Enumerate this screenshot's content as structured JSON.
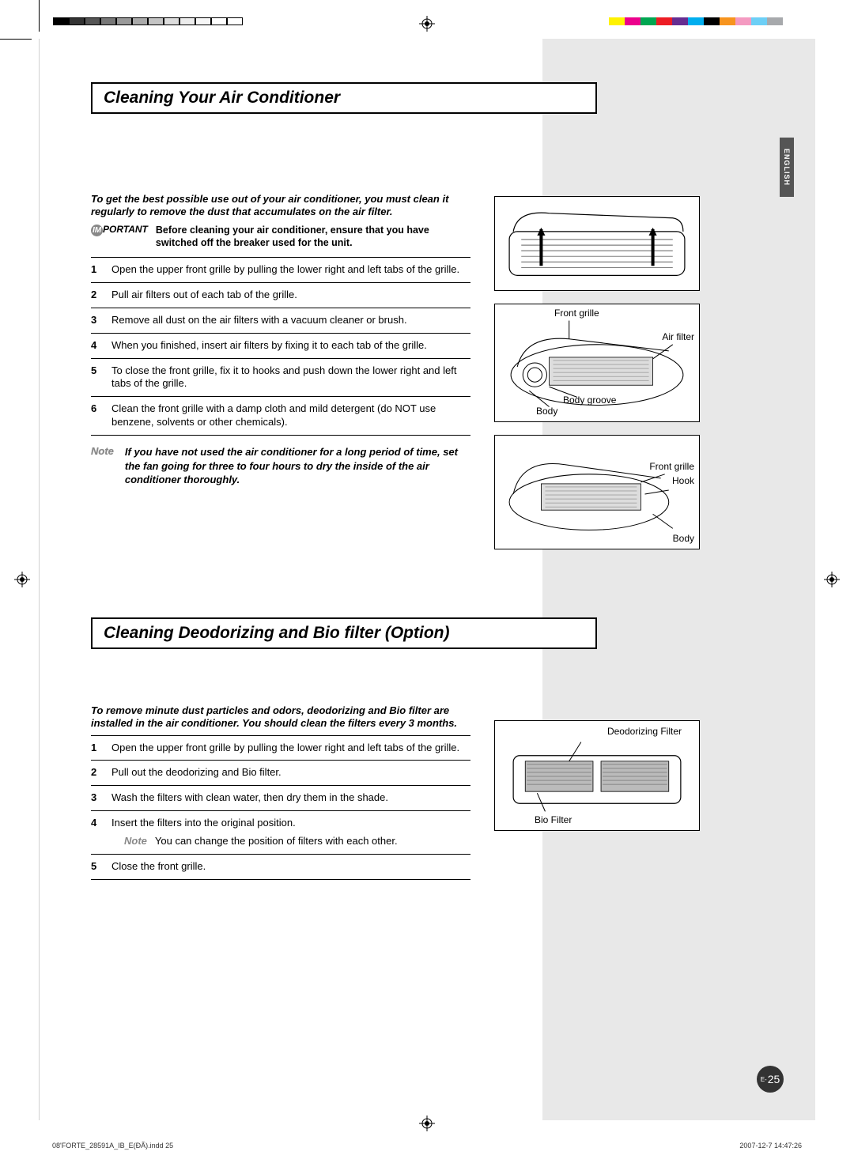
{
  "print": {
    "colorbar_left": [
      "#000000",
      "#333333",
      "#555555",
      "#777777",
      "#999999",
      "#aaaaaa",
      "#c4c4c4",
      "#dcdcdc",
      "#ececec",
      "#f6f6f6",
      "#ffffff",
      "#ffffff"
    ],
    "colorbar_right": [
      "#ffffff",
      "#fff200",
      "#ec008c",
      "#00a651",
      "#ed1c24",
      "#662d91",
      "#00aeef",
      "#000000",
      "#f7941e",
      "#f49ac1",
      "#6dcff6",
      "#a7a9ac"
    ],
    "filename": "08'FORTE_28591A_IB_E(ĐÃ).indd   25",
    "timestamp": "2007-12-7   14:47:26"
  },
  "lang_tab": "ENGLISH",
  "page_prefix": "E-",
  "page_number": "25",
  "section1": {
    "title": "Cleaning Your Air Conditioner",
    "intro": "To get the best possible use out of your air conditioner, you must clean it regularly to remove the dust that accumulates on the air filter.",
    "important_label": "PORTANT",
    "important_text": "Before cleaning your air conditioner, ensure that you have switched off the breaker used for the unit.",
    "steps": [
      "Open the upper front grille by pulling the lower right and left tabs of the grille.",
      "Pull air filters out of each tab of the grille.",
      "Remove all dust on the air filters with a vacuum cleaner or brush.",
      "When you finished, insert air filters by fixing it to each tab of the grille.",
      "To close the front grille, fix it to hooks and push down the lower right and left tabs of the grille.",
      "Clean the front grille with a damp cloth and mild detergent (do NOT use benzene, solvents or other chemicals)."
    ],
    "note_label": "Note",
    "note_text": "If you have not used the air conditioner for a long period of time, set the fan going for three to four hours to dry the inside of the air conditioner thoroughly.",
    "diagram2_labels": {
      "front_grille": "Front grille",
      "air_filter": "Air filter",
      "body_groove": "Body groove",
      "body": "Body"
    },
    "diagram3_labels": {
      "front_grille": "Front grille",
      "hook": "Hook",
      "body": "Body"
    }
  },
  "section2": {
    "title": "Cleaning Deodorizing and Bio filter (Option)",
    "intro": "To remove minute dust particles and odors, deodorizing and Bio filter are installed in the air conditioner. You should clean the filters every 3 months.",
    "steps": [
      "Open the upper front grille by pulling the lower right and left tabs of the grille.",
      "Pull out the deodorizing and Bio filter.",
      "Wash the filters with clean water, then dry them in the shade.",
      "Insert the filters into the original position.",
      "Close the front grille."
    ],
    "sub_note_label": "Note",
    "sub_note_text": "You can change the position of filters with each other.",
    "diagram_labels": {
      "deodorizing": "Deodorizing Filter",
      "bio": "Bio Filter"
    }
  }
}
